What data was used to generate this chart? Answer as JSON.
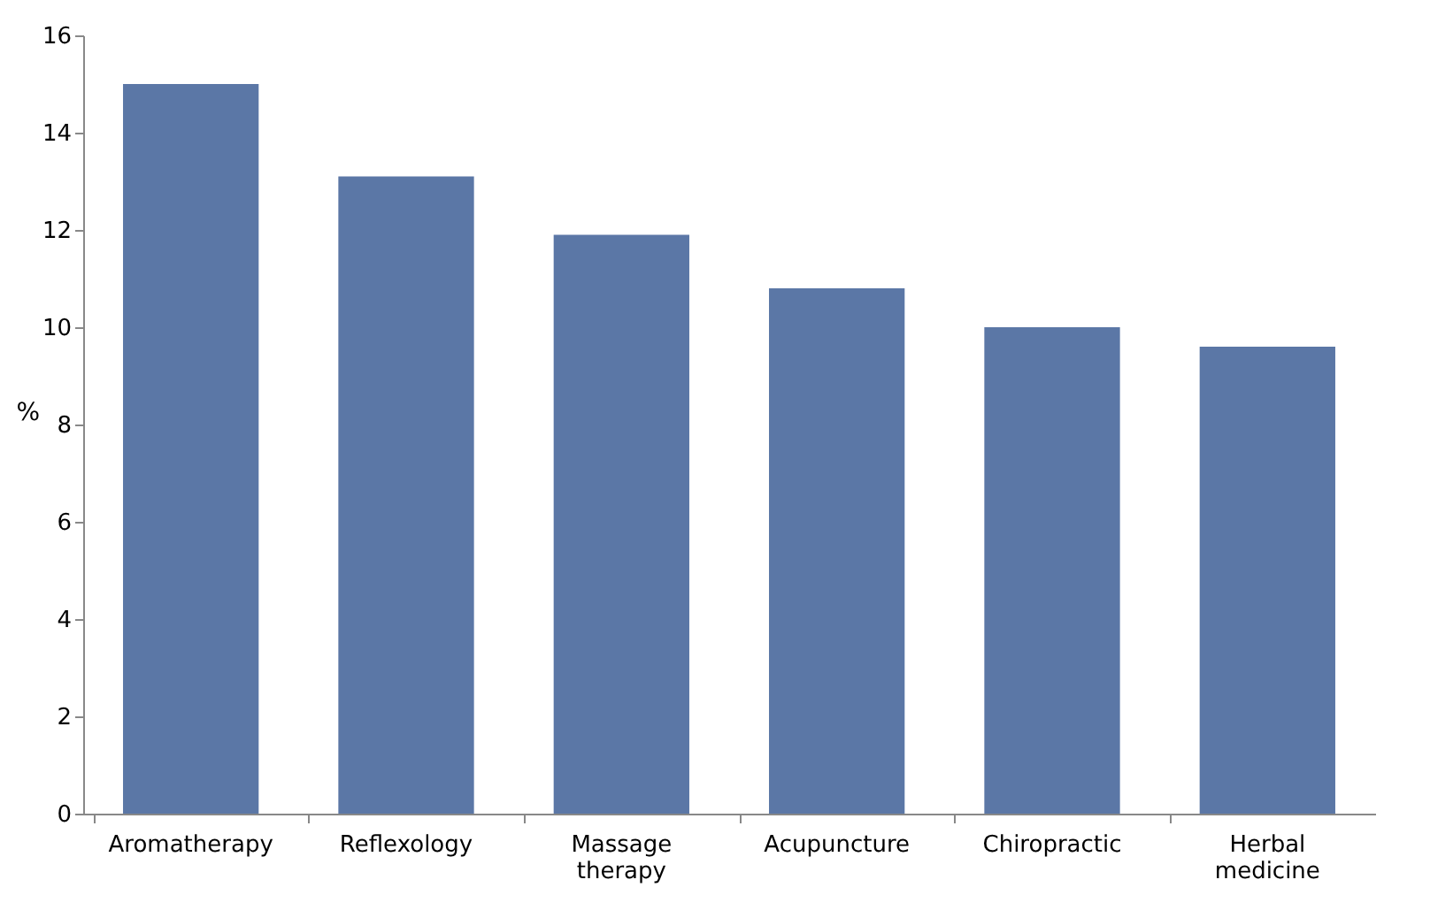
{
  "chart_data": {
    "type": "bar",
    "ylabel": "%",
    "categories": [
      "Aromatherapy",
      "Reflexology",
      "Massage therapy",
      "Acupuncture",
      "Chiropractic",
      "Herbal medicine"
    ],
    "values": [
      15,
      13.1,
      11.9,
      10.8,
      10,
      9.6
    ],
    "color": "#5b77a6",
    "ylim": [
      0,
      16
    ],
    "yticks": [
      0,
      2,
      4,
      6,
      8,
      10,
      12,
      14,
      16
    ],
    "grid": false
  }
}
